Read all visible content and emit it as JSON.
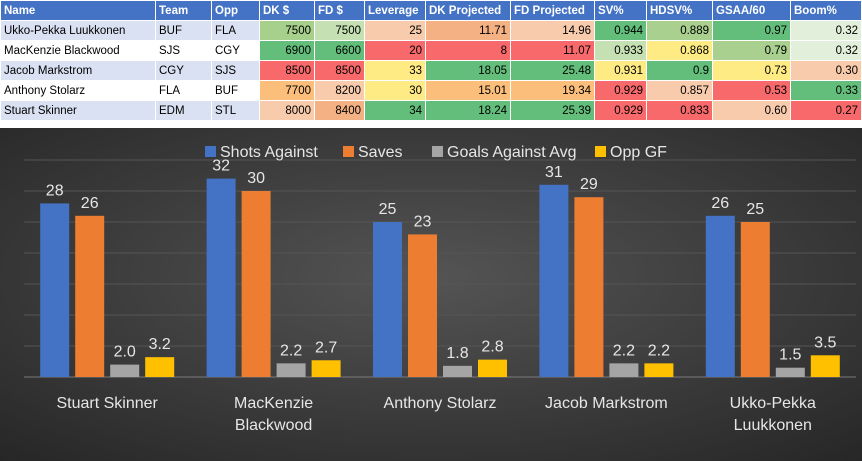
{
  "table": {
    "headers": [
      "Name",
      "Team",
      "Opp",
      "DK $",
      "FD $",
      "Leverage",
      "DK Projected",
      "FD Projected",
      "SV%",
      "HDSV%",
      "GSAA/60",
      "Boom%"
    ],
    "rows": [
      [
        "Ukko-Pekka Luukkonen",
        "BUF",
        "FLA",
        "7500",
        "7500",
        "25",
        "11.71",
        "14.96",
        "0.944",
        "0.889",
        "0.97",
        "0.32"
      ],
      [
        "MacKenzie Blackwood",
        "SJS",
        "CGY",
        "6900",
        "6600",
        "20",
        "8",
        "11.07",
        "0.933",
        "0.868",
        "0.79",
        "0.32"
      ],
      [
        "Jacob Markstrom",
        "CGY",
        "SJS",
        "8500",
        "8500",
        "33",
        "18.05",
        "25.48",
        "0.931",
        "0.9",
        "0.73",
        "0.30"
      ],
      [
        "Anthony Stolarz",
        "FLA",
        "BUF",
        "7700",
        "8200",
        "30",
        "15.01",
        "19.34",
        "0.929",
        "0.857",
        "0.53",
        "0.33"
      ],
      [
        "Stuart Skinner",
        "EDM",
        "STL",
        "8000",
        "8400",
        "34",
        "18.24",
        "25.39",
        "0.929",
        "0.833",
        "0.60",
        "0.27"
      ]
    ],
    "cell_colors": [
      [
        null,
        null,
        null,
        "#a8d08d",
        "#c5e0b3",
        "#f8cbad",
        "#f4b183",
        "#f8cbad",
        "#63be7b",
        "#a9d08e",
        "#63be7b",
        "#e2efda"
      ],
      [
        null,
        null,
        null,
        "#63be7b",
        "#63be7b",
        "#f8696b",
        "#f8696b",
        "#f8696b",
        "#c5e0b3",
        "#ffeb84",
        "#a9d08e",
        "#e2efda"
      ],
      [
        null,
        null,
        null,
        "#f8696b",
        "#f8696b",
        "#ffeb84",
        "#63be7b",
        "#63be7b",
        "#ffeb84",
        "#63be7b",
        "#ffeb84",
        "#f8cbad"
      ],
      [
        null,
        null,
        null,
        "#fcbf7b",
        "#f8cbad",
        "#ffeb84",
        "#fcbf7b",
        "#fcbf7b",
        "#f8696b",
        "#f8cbad",
        "#f8696b",
        "#63be7b"
      ],
      [
        null,
        null,
        null,
        "#f8cbad",
        "#f4b183",
        "#63be7b",
        "#63be7b",
        "#63be7b",
        "#f8696b",
        "#f8696b",
        "#f8cbad",
        "#f8696b"
      ]
    ]
  },
  "chart_data": {
    "type": "bar",
    "categories": [
      "Stuart Skinner",
      "MacKenzie Blackwood",
      "Anthony Stolarz",
      "Jacob Markstrom",
      "Ukko-Pekka Luukkonen"
    ],
    "category_lines": [
      [
        "Stuart Skinner"
      ],
      [
        "MacKenzie",
        "Blackwood"
      ],
      [
        "Anthony Stolarz"
      ],
      [
        "Jacob Markstrom"
      ],
      [
        "Ukko-Pekka",
        "Luukkonen"
      ]
    ],
    "series": [
      {
        "name": "Shots Against",
        "color": "#4472c4",
        "values": [
          28,
          32,
          25,
          31,
          26
        ],
        "labels": [
          "28",
          "32",
          "25",
          "31",
          "26"
        ]
      },
      {
        "name": "Saves",
        "color": "#ed7d31",
        "values": [
          26,
          30,
          23,
          29,
          25
        ],
        "labels": [
          "26",
          "30",
          "23",
          "29",
          "25"
        ]
      },
      {
        "name": "Goals Against Avg",
        "color": "#a5a5a5",
        "values": [
          2.0,
          2.2,
          1.8,
          2.2,
          1.5
        ],
        "labels": [
          "2.0",
          "2.2",
          "1.8",
          "2.2",
          "1.5"
        ]
      },
      {
        "name": "Opp GF",
        "color": "#ffc000",
        "values": [
          3.2,
          2.7,
          2.8,
          2.2,
          3.5
        ],
        "labels": [
          "3.2",
          "2.7",
          "2.8",
          "2.2",
          "3.5"
        ]
      }
    ],
    "ylim": [
      0,
      35
    ],
    "grid": true,
    "legend_position": "top",
    "background": "#3d3d3d"
  }
}
